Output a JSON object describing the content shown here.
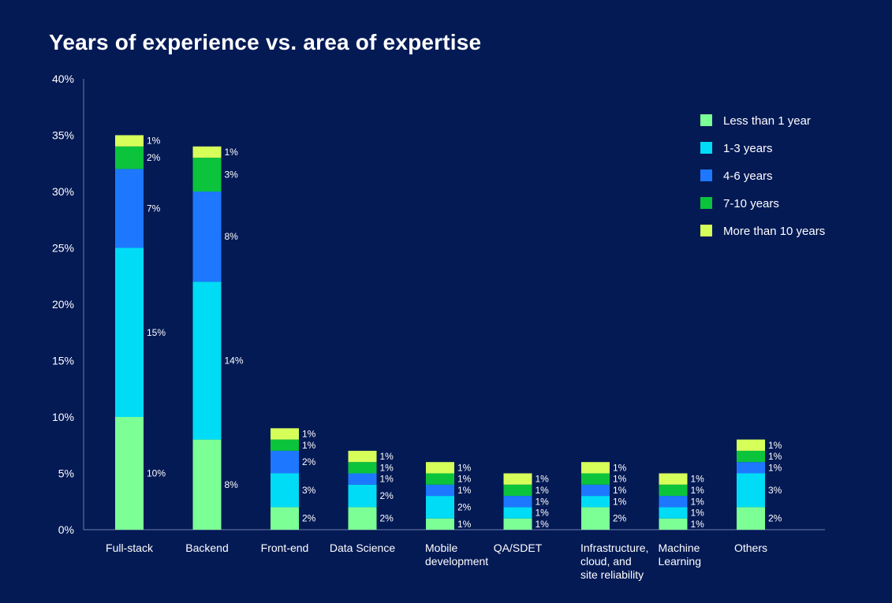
{
  "chart_data": {
    "type": "bar",
    "stacked": true,
    "title": "Years of experience vs. area of expertise",
    "xlabel": "",
    "ylabel": "",
    "ylim": [
      0,
      40
    ],
    "y_ticks": [
      "0%",
      "5%",
      "10%",
      "15%",
      "20%",
      "25%",
      "30%",
      "35%",
      "40%"
    ],
    "legend_position": "top-right",
    "categories": [
      [
        "Full-stack"
      ],
      [
        "Backend"
      ],
      [
        "Front-end"
      ],
      [
        "Data Science"
      ],
      [
        "Mobile",
        "development"
      ],
      [
        "QA/SDET"
      ],
      [
        "Infrastructure,",
        "cloud, and",
        "site reliability"
      ],
      [
        "Machine",
        "Learning"
      ],
      [
        "Others"
      ]
    ],
    "series": [
      {
        "name": "Less than 1 year",
        "color": "#7CFF95",
        "values": [
          10,
          8,
          2,
          2,
          1,
          1,
          2,
          1,
          2
        ],
        "value_labels": [
          "10%",
          "8%",
          "2%",
          "2%",
          "1%",
          "1%",
          "2%",
          "1%",
          "2%"
        ]
      },
      {
        "name": "1-3 years",
        "color": "#00DCF5",
        "values": [
          15,
          14,
          3,
          2,
          2,
          1,
          1,
          1,
          3
        ],
        "value_labels": [
          "15%",
          "14%",
          "3%",
          "2%",
          "2%",
          "1%",
          "1%",
          "1%",
          "3%"
        ]
      },
      {
        "name": "4-6 years",
        "color": "#1E78FF",
        "values": [
          7,
          8,
          2,
          1,
          1,
          1,
          1,
          1,
          1
        ],
        "value_labels": [
          "7%",
          "8%",
          "2%",
          "1%",
          "1%",
          "1%",
          "1%",
          "1%",
          "1%"
        ]
      },
      {
        "name": "7-10 years",
        "color": "#0BC43C",
        "values": [
          2,
          3,
          1,
          1,
          1,
          1,
          1,
          1,
          1
        ],
        "value_labels": [
          "2%",
          "3%",
          "1%",
          "1%",
          "1%",
          "1%",
          "1%",
          "1%",
          "1%"
        ]
      },
      {
        "name": "More than 10 years",
        "color": "#D7FF5A",
        "values": [
          1,
          1,
          1,
          1,
          1,
          1,
          1,
          1,
          1
        ],
        "value_labels": [
          "1%",
          "1%",
          "1%",
          "1%",
          "1%",
          "1%",
          "1%",
          "1%",
          "1%"
        ]
      }
    ]
  }
}
